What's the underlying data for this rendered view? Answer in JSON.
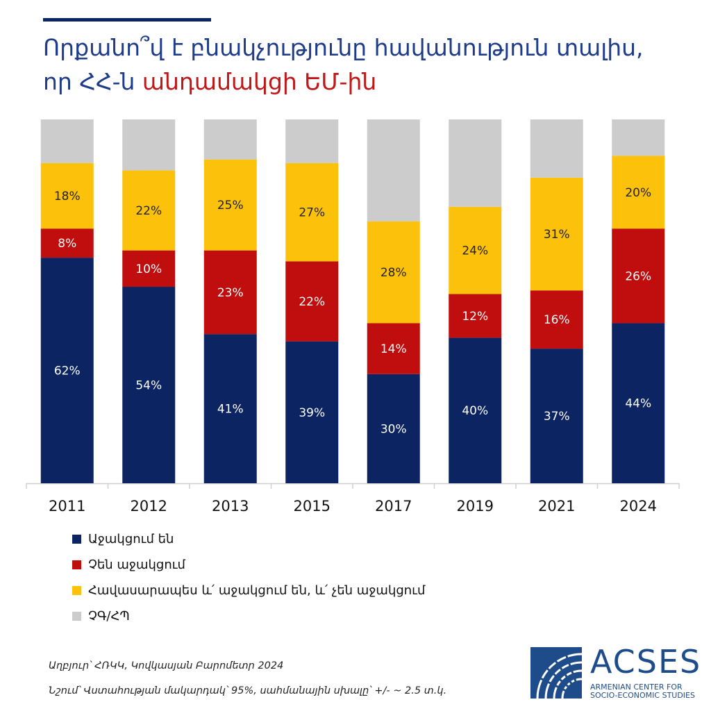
{
  "title_line1": "Որքանո՞վ է բնակչությունը հավանություն տալիս,",
  "title_line2_a": "որ ՀՀ-ն ",
  "title_line2_b": "անդամակցի ԵՄ-ին",
  "colors": {
    "support": "#0c2461",
    "oppose": "#c00d0d",
    "neutral": "#fcc10b",
    "dk": "#cccccc",
    "title": "#1f3c88",
    "highlight": "#c01818"
  },
  "chart_data": {
    "type": "bar",
    "stacked": true,
    "categories": [
      "2011",
      "2012",
      "2013",
      "2015",
      "2017",
      "2019",
      "2021",
      "2024"
    ],
    "series": [
      {
        "name": "Աջակցում են",
        "values": [
          62,
          54,
          41,
          39,
          30,
          40,
          37,
          44
        ]
      },
      {
        "name": "Չեն աջակցում",
        "values": [
          8,
          10,
          23,
          22,
          14,
          12,
          16,
          26
        ]
      },
      {
        "name": "Հավասարապես և՛ աջակցում են, և՛ չեն աջակցում",
        "values": [
          18,
          22,
          25,
          27,
          28,
          24,
          31,
          20
        ]
      },
      {
        "name": "ՉԳ/ՀՊ",
        "values": [
          12,
          14,
          11,
          12,
          28,
          24,
          16,
          10
        ]
      }
    ],
    "data_labels": [
      [
        "62%",
        "54%",
        "41%",
        "39%",
        "30%",
        "40%",
        "37%",
        "44%"
      ],
      [
        "8%",
        "10%",
        "23%",
        "22%",
        "14%",
        "12%",
        "16%",
        "26%"
      ],
      [
        "18%",
        "22%",
        "25%",
        "27%",
        "28%",
        "24%",
        "31%",
        "20%"
      ]
    ],
    "ylim": [
      0,
      100
    ],
    "legend_position": "bottom-left",
    "grid": false
  },
  "legend": [
    "Աջակցում են",
    "Չեն աջակցում",
    "Հավասարապես և՛ աջակցում են, և՛ չեն աջակցում",
    "ՉԳ/ՀՊ"
  ],
  "footnotes": {
    "source": "Աղբյուր՝ ՀՌԿԿ, Կովկասյան Բարոմետր 2024",
    "note": "Նշում՝ Վստահության մակարդակ՝ 95%, սահմանային սխալը՝ +/- ~ 2.5 տ.կ."
  },
  "logo": {
    "name": "ACSES",
    "sub1": "ARMENIAN CENTER FOR",
    "sub2": "SOCIO-ECONOMIC STUDIES"
  }
}
